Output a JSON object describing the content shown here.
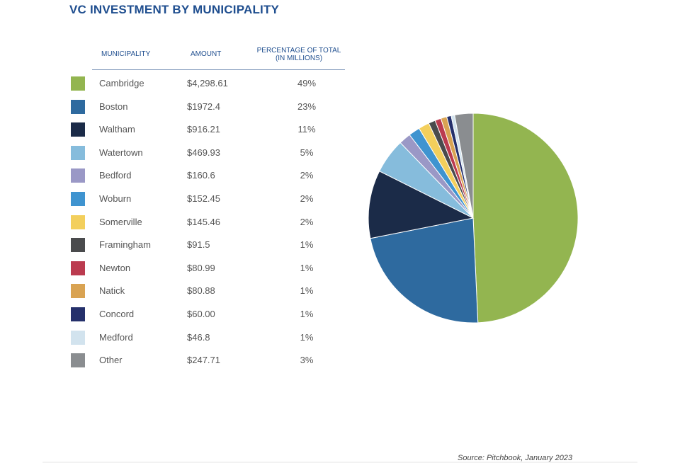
{
  "title": "VC INVESTMENT BY MUNICIPALITY",
  "table": {
    "headers": {
      "municipality": "MUNICIPALITY",
      "amount": "AMOUNT",
      "percentage_line1": "PERCENTAGE OF TOTAL",
      "percentage_line2": "(IN MILLIONS)"
    }
  },
  "source": "Source: Pitchbook, January 2023",
  "chart_data": {
    "type": "pie",
    "title": "VC INVESTMENT BY MUNICIPALITY",
    "slices": [
      {
        "label": "Cambridge",
        "amount": "$4,298.61",
        "value": 4298.61,
        "percent": "49%",
        "color": "#93b550"
      },
      {
        "label": "Boston",
        "amount": "$1972.4",
        "value": 1972.4,
        "percent": "23%",
        "color": "#2e6a9f"
      },
      {
        "label": "Waltham",
        "amount": "$916.21",
        "value": 916.21,
        "percent": "11%",
        "color": "#1b2b48"
      },
      {
        "label": "Watertown",
        "amount": "$469.93",
        "value": 469.93,
        "percent": "5%",
        "color": "#86bcdc"
      },
      {
        "label": "Bedford",
        "amount": "$160.6",
        "value": 160.6,
        "percent": "2%",
        "color": "#9a98c6"
      },
      {
        "label": "Woburn",
        "amount": "$152.45",
        "value": 152.45,
        "percent": "2%",
        "color": "#3f94d0"
      },
      {
        "label": "Somerville",
        "amount": "$145.46",
        "value": 145.46,
        "percent": "2%",
        "color": "#f3cf5c"
      },
      {
        "label": "Framingham",
        "amount": "$91.5",
        "value": 91.5,
        "percent": "1%",
        "color": "#4a4b4d"
      },
      {
        "label": "Newton",
        "amount": "$80.99",
        "value": 80.99,
        "percent": "1%",
        "color": "#bb3b4f"
      },
      {
        "label": "Natick",
        "amount": "$80.88",
        "value": 80.88,
        "percent": "1%",
        "color": "#d9a352"
      },
      {
        "label": "Concord",
        "amount": "$60.00",
        "value": 60.0,
        "percent": "1%",
        "color": "#25306b"
      },
      {
        "label": "Medford",
        "amount": "$46.8",
        "value": 46.8,
        "percent": "1%",
        "color": "#d2e3ee"
      },
      {
        "label": "Other",
        "amount": "$247.71",
        "value": 247.71,
        "percent": "3%",
        "color": "#8a8d90"
      }
    ]
  }
}
